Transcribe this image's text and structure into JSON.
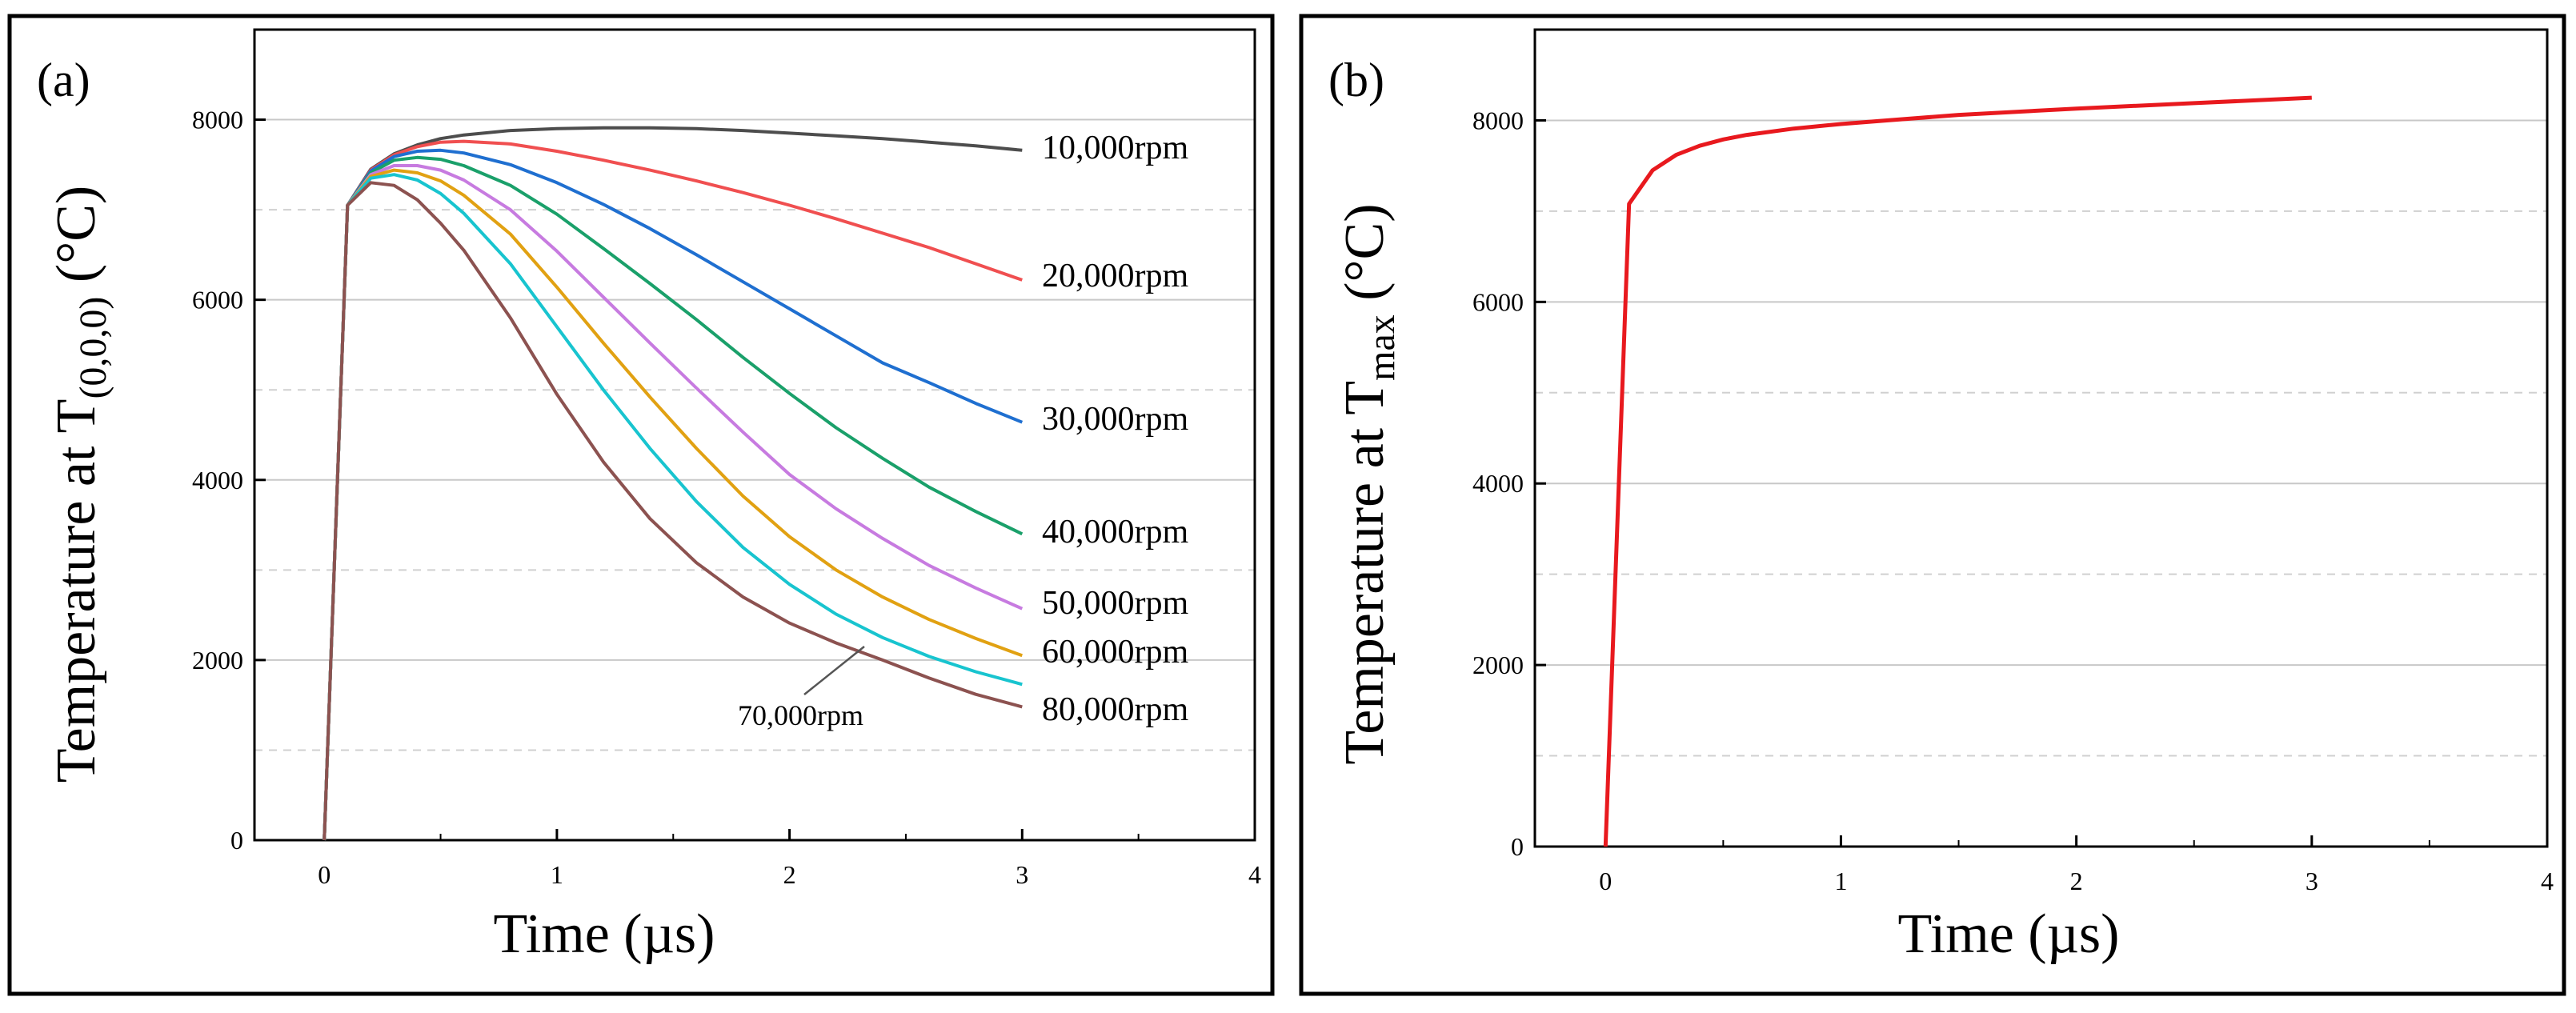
{
  "chart_data": [
    {
      "type": "line",
      "panel_label": "(a)",
      "xlabel": "Time (µs)",
      "ylabel_prefix": "Temperature at T",
      "ylabel_subscript": "(0,0,0)",
      "ylabel_suffix": " (°C)",
      "xlim": [
        -0.3,
        4
      ],
      "ylim": [
        0,
        9000
      ],
      "xticks": [
        0,
        1,
        2,
        3,
        4
      ],
      "yticks": [
        0,
        2000,
        4000,
        6000,
        8000
      ],
      "x_tick_labels": [
        "0",
        "1",
        "2",
        "3",
        "4"
      ],
      "y_tick_labels": [
        "0",
        "2000",
        "4000",
        "6000",
        "8000"
      ],
      "grid": "horizontal dashed",
      "x": [
        0,
        0.1,
        0.2,
        0.3,
        0.4,
        0.5,
        0.6,
        0.8,
        1.0,
        1.2,
        1.4,
        1.6,
        1.8,
        2.0,
        2.2,
        2.4,
        2.6,
        2.8,
        3.0
      ],
      "series": [
        {
          "name": "10,000rpm",
          "label": "10,000rpm",
          "color": "#4d4d4d",
          "values": [
            0,
            7050,
            7450,
            7620,
            7720,
            7790,
            7830,
            7880,
            7900,
            7910,
            7910,
            7900,
            7880,
            7850,
            7820,
            7790,
            7750,
            7710,
            7660
          ]
        },
        {
          "name": "20,000rpm",
          "label": "20,000rpm",
          "color": "#f04f50",
          "values": [
            0,
            7050,
            7440,
            7610,
            7700,
            7750,
            7760,
            7730,
            7650,
            7550,
            7440,
            7320,
            7190,
            7050,
            6900,
            6740,
            6580,
            6400,
            6220
          ]
        },
        {
          "name": "30,000rpm",
          "label": "30,000rpm",
          "color": "#1f6fd0",
          "values": [
            0,
            7050,
            7430,
            7590,
            7650,
            7660,
            7630,
            7500,
            7300,
            7060,
            6790,
            6500,
            6200,
            5900,
            5600,
            5300,
            5080,
            4850,
            4640
          ]
        },
        {
          "name": "40,000rpm",
          "label": "40,000rpm",
          "color": "#1aa06a",
          "values": [
            0,
            7050,
            7410,
            7550,
            7580,
            7560,
            7490,
            7270,
            6950,
            6570,
            6180,
            5780,
            5360,
            4960,
            4580,
            4240,
            3920,
            3650,
            3400
          ]
        },
        {
          "name": "50,000rpm",
          "label": "50,000rpm",
          "color": "#c77be0",
          "values": [
            0,
            7050,
            7390,
            7490,
            7490,
            7440,
            7330,
            7000,
            6540,
            6030,
            5520,
            5020,
            4530,
            4060,
            3680,
            3350,
            3050,
            2800,
            2570
          ]
        },
        {
          "name": "60,000rpm",
          "label": "60,000rpm",
          "color": "#e1a112",
          "values": [
            0,
            7050,
            7370,
            7440,
            7410,
            7320,
            7160,
            6730,
            6140,
            5520,
            4920,
            4350,
            3820,
            3370,
            3000,
            2700,
            2450,
            2240,
            2050
          ]
        },
        {
          "name": "70,000rpm",
          "label": "70,000rpm",
          "color": "#18c4cf",
          "values": [
            0,
            7050,
            7350,
            7390,
            7330,
            7180,
            6960,
            6400,
            5700,
            5000,
            4350,
            3760,
            3250,
            2840,
            2510,
            2250,
            2040,
            1870,
            1730
          ]
        },
        {
          "name": "80,000rpm",
          "label": "80,000rpm",
          "color": "#8c5250",
          "values": [
            0,
            7050,
            7300,
            7270,
            7110,
            6850,
            6550,
            5800,
            4950,
            4200,
            3570,
            3080,
            2700,
            2410,
            2190,
            2000,
            1800,
            1620,
            1480
          ]
        }
      ],
      "annotation": {
        "text": "70,000rpm",
        "points_to": "70,000rpm",
        "at_x": 2.3,
        "at_y": 2250
      }
    },
    {
      "type": "line",
      "panel_label": "(b)",
      "xlabel": "Time (µs)",
      "ylabel_prefix": "Temperature at T",
      "ylabel_subscript": "max",
      "ylabel_suffix": " (°C)",
      "xlim": [
        -0.3,
        4
      ],
      "ylim": [
        0,
        9000
      ],
      "xticks": [
        0,
        1,
        2,
        3,
        4
      ],
      "yticks": [
        0,
        2000,
        4000,
        6000,
        8000
      ],
      "x_tick_labels": [
        "0",
        "1",
        "2",
        "3",
        "4"
      ],
      "y_tick_labels": [
        "0",
        "2000",
        "4000",
        "6000",
        "8000"
      ],
      "grid": "horizontal dashed",
      "x": [
        0,
        0.1,
        0.2,
        0.3,
        0.4,
        0.5,
        0.6,
        0.8,
        1.0,
        1.2,
        1.5,
        2.0,
        2.5,
        3.0
      ],
      "series": [
        {
          "name": "Tmax",
          "color": "#e8191e",
          "values": [
            0,
            7080,
            7450,
            7620,
            7720,
            7790,
            7840,
            7910,
            7960,
            8000,
            8060,
            8130,
            8190,
            8250
          ]
        }
      ]
    }
  ]
}
